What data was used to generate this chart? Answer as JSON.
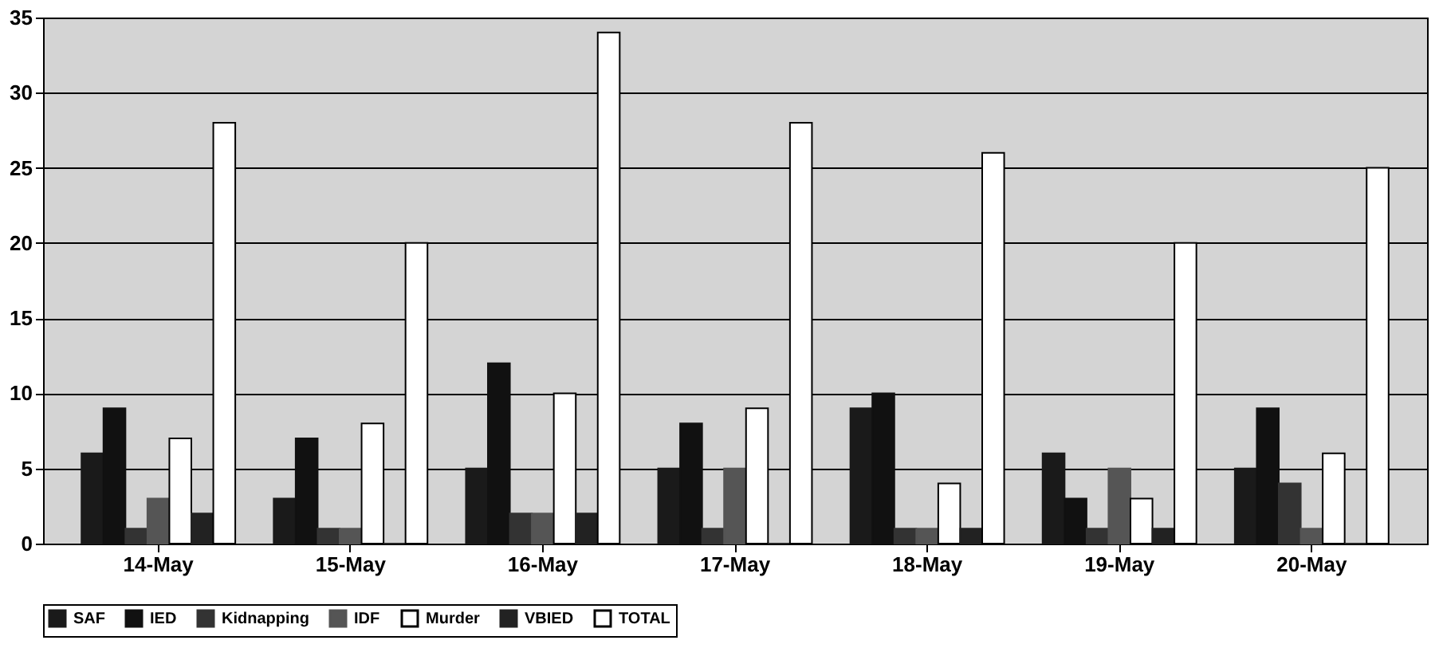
{
  "chart_data": {
    "type": "bar",
    "categories": [
      "14-May",
      "15-May",
      "16-May",
      "17-May",
      "18-May",
      "19-May",
      "20-May"
    ],
    "series": [
      {
        "name": "SAF",
        "color": "#1a1a1a",
        "values": [
          6,
          3,
          5,
          5,
          9,
          6,
          5
        ]
      },
      {
        "name": "IED",
        "color": "#111111",
        "values": [
          9,
          7,
          12,
          8,
          10,
          3,
          9
        ]
      },
      {
        "name": "Kidnapping",
        "color": "#333333",
        "values": [
          1,
          1,
          2,
          1,
          1,
          1,
          4
        ]
      },
      {
        "name": "IDF",
        "color": "#555555",
        "values": [
          3,
          1,
          2,
          5,
          1,
          5,
          1
        ]
      },
      {
        "name": "Murder",
        "color": "#ffffff",
        "values": [
          7,
          8,
          10,
          9,
          4,
          3,
          6
        ]
      },
      {
        "name": "VBIED",
        "color": "#222222",
        "values": [
          2,
          0,
          2,
          0,
          1,
          1,
          0
        ]
      },
      {
        "name": "TOTAL",
        "color": "#ffffff",
        "values": [
          28,
          20,
          34,
          28,
          26,
          20,
          25
        ]
      }
    ],
    "ylim": [
      0,
      35
    ],
    "yticks": [
      0,
      5,
      10,
      15,
      20,
      25,
      30,
      35
    ],
    "grid": "y",
    "legend": "bottom"
  }
}
